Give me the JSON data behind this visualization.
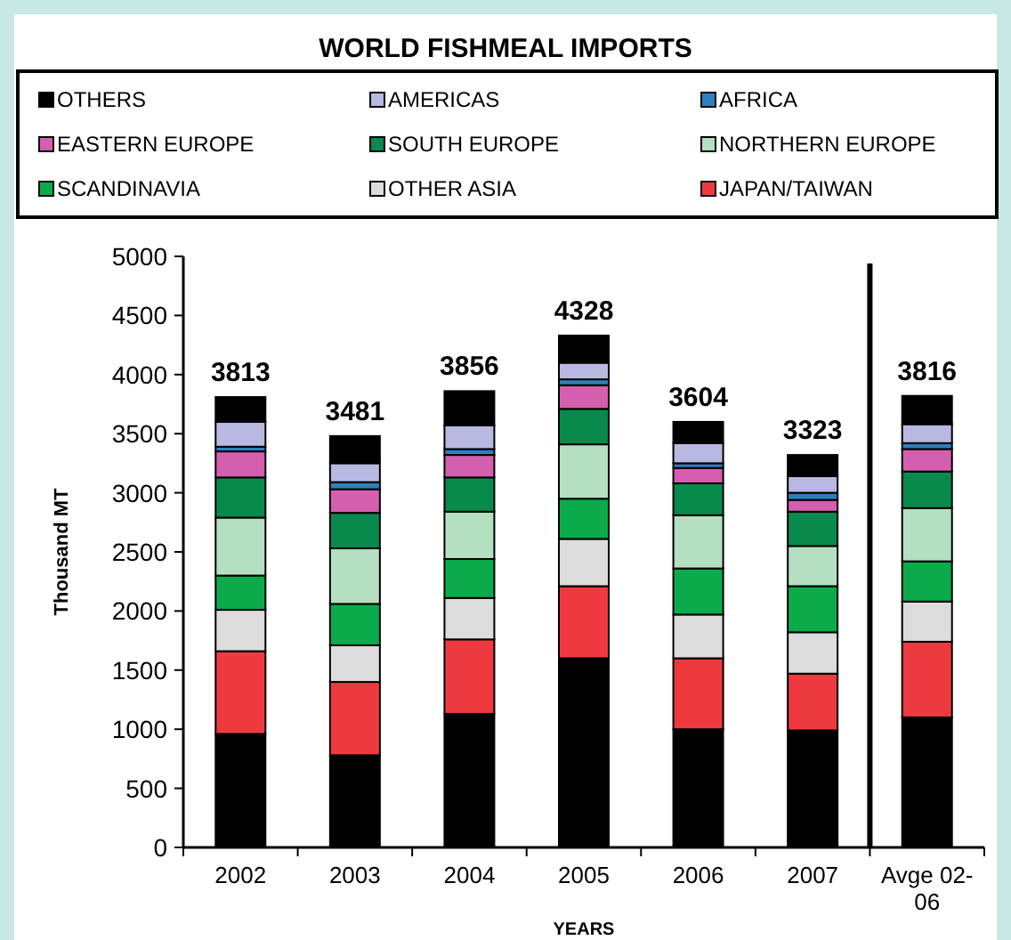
{
  "chart_data": {
    "type": "bar",
    "title": "WORLD FISHMEAL IMPORTS",
    "xlabel": "YEARS",
    "ylabel": "Thousand MT",
    "stacked": true,
    "legend": "top",
    "grid": false,
    "categories": [
      "2002",
      "2003",
      "2004",
      "2005",
      "2006",
      "2007",
      "Avge 02-06"
    ],
    "ylim": [
      0,
      5000
    ],
    "yticks": [
      0,
      500,
      1000,
      1500,
      2000,
      2500,
      3000,
      3500,
      4000,
      4500,
      5000
    ],
    "totals": [
      "3813",
      "3481",
      "3856",
      "4328",
      "3604",
      "3323",
      "3816"
    ],
    "series": [
      {
        "color": "#000000",
        "values": [
          960,
          780,
          1130,
          1600,
          1000,
          990,
          1100
        ]
      },
      {
        "name": "JAPAN/TAIWAN",
        "color": "#ee3a3f",
        "values": [
          700,
          620,
          630,
          610,
          600,
          480,
          640
        ]
      },
      {
        "name": "OTHER ASIA",
        "color": "#dcdcdc",
        "values": [
          350,
          310,
          350,
          400,
          370,
          350,
          340
        ]
      },
      {
        "name": "SCANDINAVIA",
        "color": "#0bab4b",
        "values": [
          290,
          350,
          330,
          340,
          390,
          390,
          340
        ]
      },
      {
        "name": "NORTHERN EUROPE",
        "color": "#b4dfc0",
        "values": [
          490,
          470,
          400,
          460,
          450,
          340,
          450
        ]
      },
      {
        "name": "SOUTH EUROPE",
        "color": "#078a4c",
        "values": [
          340,
          300,
          290,
          300,
          270,
          290,
          310
        ]
      },
      {
        "name": "EASTERN EUROPE",
        "color": "#d35fae",
        "values": [
          220,
          200,
          190,
          200,
          130,
          100,
          190
        ]
      },
      {
        "name": "AFRICA",
        "color": "#2f7fbf",
        "values": [
          40,
          60,
          50,
          50,
          40,
          60,
          50
        ]
      },
      {
        "name": "AMERICAS",
        "color": "#b8b8e0",
        "values": [
          210,
          160,
          200,
          140,
          170,
          140,
          160
        ]
      },
      {
        "name": "OTHERS",
        "color": "#000000",
        "values": [
          210,
          230,
          290,
          230,
          180,
          180,
          240
        ]
      }
    ]
  }
}
